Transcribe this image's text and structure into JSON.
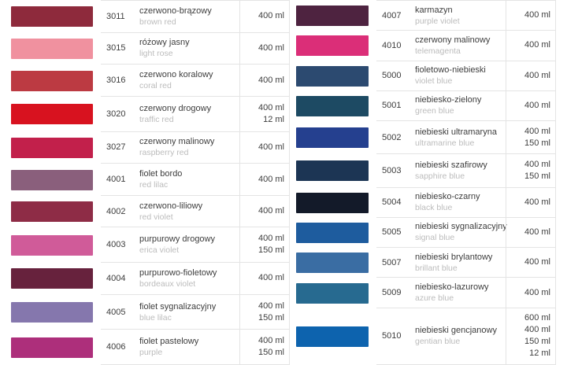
{
  "border_color": "#e4e4e4",
  "text_color": "#3d3d3d",
  "muted_text_color": "#bcbcbc",
  "columns": [
    {
      "rows": [
        {
          "code": "3011",
          "name_pl": "czerwono-brązowy",
          "name_en": "brown red",
          "volumes": [
            "400 ml"
          ],
          "swatch": "#8e2a3c"
        },
        {
          "code": "3015",
          "name_pl": "różowy jasny",
          "name_en": "light rose",
          "volumes": [
            "400 ml"
          ],
          "swatch": "#f0919f"
        },
        {
          "code": "3016",
          "name_pl": "czerwono koralowy",
          "name_en": "coral red",
          "volumes": [
            "400 ml"
          ],
          "swatch": "#bc3a42"
        },
        {
          "code": "3020",
          "name_pl": "czerwony drogowy",
          "name_en": "traffic red",
          "volumes": [
            "400 ml",
            "12 ml"
          ],
          "swatch": "#d8121f"
        },
        {
          "code": "3027",
          "name_pl": "czerwony malinowy",
          "name_en": "raspberry red",
          "volumes": [
            "400 ml"
          ],
          "swatch": "#c2204b"
        },
        {
          "code": "4001",
          "name_pl": "fiolet bordo",
          "name_en": "red lilac",
          "volumes": [
            "400 ml"
          ],
          "swatch": "#8a5f7c"
        },
        {
          "code": "4002",
          "name_pl": "czerwono-liliowy",
          "name_en": "red violet",
          "volumes": [
            "400 ml"
          ],
          "swatch": "#8e2c46"
        },
        {
          "code": "4003",
          "name_pl": "purpurowy drogowy",
          "name_en": "erica violet",
          "volumes": [
            "400 ml",
            "150 ml"
          ],
          "swatch": "#d05b99"
        },
        {
          "code": "4004",
          "name_pl": "purpurowo-fioletowy",
          "name_en": "bordeaux violet",
          "volumes": [
            "400 ml"
          ],
          "swatch": "#67223d"
        },
        {
          "code": "4005",
          "name_pl": "fiolet sygnalizacyjny",
          "name_en": "blue lilac",
          "volumes": [
            "400 ml",
            "150 ml"
          ],
          "swatch": "#8577ad"
        },
        {
          "code": "4006",
          "name_pl": "fiolet pastelowy",
          "name_en": "purple",
          "volumes": [
            "400 ml",
            "150 ml"
          ],
          "swatch": "#ad2f7b"
        }
      ]
    },
    {
      "rows": [
        {
          "code": "4007",
          "name_pl": "karmazyn",
          "name_en": "purple violet",
          "volumes": [
            "400 ml"
          ],
          "swatch": "#4e2340"
        },
        {
          "code": "4010",
          "name_pl": "czerwony malinowy",
          "name_en": "telemagenta",
          "volumes": [
            "400 ml"
          ],
          "swatch": "#db2e78"
        },
        {
          "code": "5000",
          "name_pl": "fioletowo-niebieski",
          "name_en": "violet blue",
          "volumes": [
            "400 ml"
          ],
          "swatch": "#2c4a70"
        },
        {
          "code": "5001",
          "name_pl": "niebiesko-zielony",
          "name_en": "green blue",
          "volumes": [
            "400 ml"
          ],
          "swatch": "#1d4a63"
        },
        {
          "code": "5002",
          "name_pl": "niebieski ultramaryna",
          "name_en": "ultramarine blue",
          "volumes": [
            "400 ml",
            "150 ml"
          ],
          "swatch": "#25408f"
        },
        {
          "code": "5003",
          "name_pl": "niebieski szafirowy",
          "name_en": "sapphire blue",
          "volumes": [
            "400 ml",
            "150 ml"
          ],
          "swatch": "#1c3554"
        },
        {
          "code": "5004",
          "name_pl": "niebiesko-czarny",
          "name_en": "black blue",
          "volumes": [
            "400 ml"
          ],
          "swatch": "#131a29"
        },
        {
          "code": "5005",
          "name_pl": "niebieski sygnalizacyjny",
          "name_en": "signal blue",
          "volumes": [
            "400 ml"
          ],
          "swatch": "#1e5c9e"
        },
        {
          "code": "5007",
          "name_pl": "niebieski brylantowy",
          "name_en": "brillant blue",
          "volumes": [
            "400 ml"
          ],
          "swatch": "#3a6da3"
        },
        {
          "code": "5009",
          "name_pl": "niebiesko-lazurowy",
          "name_en": "azure blue",
          "volumes": [
            "400 ml"
          ],
          "swatch": "#276a90"
        },
        {
          "code": "5010",
          "name_pl": "niebieski gencjanowy",
          "name_en": "gentian blue",
          "volumes": [
            "600 ml",
            "400 ml",
            "150 ml",
            "12 ml"
          ],
          "swatch": "#0d63ae"
        }
      ]
    }
  ]
}
